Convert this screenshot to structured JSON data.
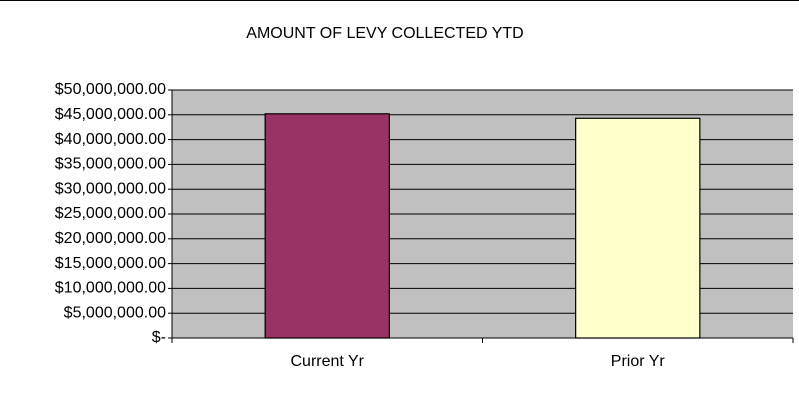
{
  "chart_data": {
    "type": "bar",
    "title": "AMOUNT OF LEVY COLLECTED YTD",
    "categories": [
      "Current Yr",
      "Prior Yr"
    ],
    "values": [
      45200000,
      44300000
    ],
    "colors": [
      "#993366",
      "#ffffcc"
    ],
    "plot_background": "#c0c0c0",
    "ylim": [
      0,
      50000000
    ],
    "yticks": [
      {
        "value": 0,
        "label": "$-"
      },
      {
        "value": 5000000,
        "label": "$5,000,000.00"
      },
      {
        "value": 10000000,
        "label": "$10,000,000.00"
      },
      {
        "value": 15000000,
        "label": "$15,000,000.00"
      },
      {
        "value": 20000000,
        "label": "$20,000,000.00"
      },
      {
        "value": 25000000,
        "label": "$25,000,000.00"
      },
      {
        "value": 30000000,
        "label": "$30,000,000.00"
      },
      {
        "value": 35000000,
        "label": "$35,000,000.00"
      },
      {
        "value": 40000000,
        "label": "$40,000,000.00"
      },
      {
        "value": 45000000,
        "label": "$45,000,000.00"
      },
      {
        "value": 50000000,
        "label": "$50,000,000.00"
      }
    ],
    "grid": true
  }
}
